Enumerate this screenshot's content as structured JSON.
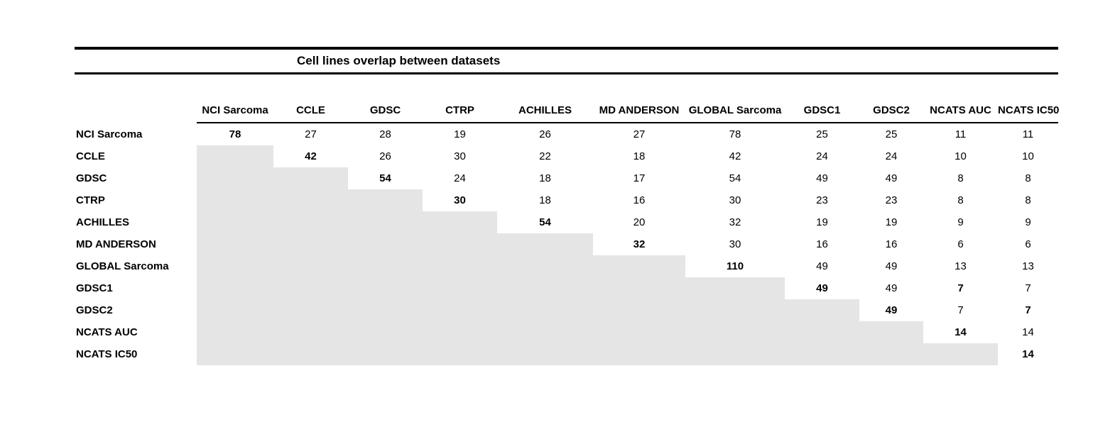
{
  "title": "Cell lines overlap between datasets",
  "colors": {
    "shaded_cell": "#e5e5e5",
    "rule": "#000000"
  },
  "columns": [
    "NCI Sarcoma",
    "CCLE",
    "GDSC",
    "CTRP",
    "ACHILLES",
    "MD ANDERSON",
    "GLOBAL Sarcoma",
    "GDSC1",
    "GDSC2",
    "NCATS AUC",
    "NCATS IC50"
  ],
  "rows": [
    {
      "label": "NCI Sarcoma",
      "cells": [
        {
          "v": 78,
          "b": true
        },
        {
          "v": 27
        },
        {
          "v": 28
        },
        {
          "v": 19
        },
        {
          "v": 26
        },
        {
          "v": 27
        },
        {
          "v": 78
        },
        {
          "v": 25
        },
        {
          "v": 25
        },
        {
          "v": 11
        },
        {
          "v": 11
        }
      ]
    },
    {
      "label": "CCLE",
      "cells": [
        null,
        {
          "v": 42,
          "b": true
        },
        {
          "v": 26
        },
        {
          "v": 30
        },
        {
          "v": 22
        },
        {
          "v": 18
        },
        {
          "v": 42
        },
        {
          "v": 24
        },
        {
          "v": 24
        },
        {
          "v": 10
        },
        {
          "v": 10
        }
      ]
    },
    {
      "label": "GDSC",
      "cells": [
        null,
        null,
        {
          "v": 54,
          "b": true
        },
        {
          "v": 24
        },
        {
          "v": 18
        },
        {
          "v": 17
        },
        {
          "v": 54
        },
        {
          "v": 49
        },
        {
          "v": 49
        },
        {
          "v": 8
        },
        {
          "v": 8
        }
      ]
    },
    {
      "label": "CTRP",
      "cells": [
        null,
        null,
        null,
        {
          "v": 30,
          "b": true
        },
        {
          "v": 18
        },
        {
          "v": 16
        },
        {
          "v": 30
        },
        {
          "v": 23
        },
        {
          "v": 23
        },
        {
          "v": 8
        },
        {
          "v": 8
        }
      ]
    },
    {
      "label": "ACHILLES",
      "cells": [
        null,
        null,
        null,
        null,
        {
          "v": 54,
          "b": true
        },
        {
          "v": 20
        },
        {
          "v": 32
        },
        {
          "v": 19
        },
        {
          "v": 19
        },
        {
          "v": 9
        },
        {
          "v": 9
        }
      ]
    },
    {
      "label": "MD ANDERSON",
      "cells": [
        null,
        null,
        null,
        null,
        null,
        {
          "v": 32,
          "b": true
        },
        {
          "v": 30
        },
        {
          "v": 16
        },
        {
          "v": 16
        },
        {
          "v": 6
        },
        {
          "v": 6
        }
      ]
    },
    {
      "label": "GLOBAL Sarcoma",
      "cells": [
        null,
        null,
        null,
        null,
        null,
        null,
        {
          "v": 110,
          "b": true
        },
        {
          "v": 49
        },
        {
          "v": 49
        },
        {
          "v": 13
        },
        {
          "v": 13
        }
      ]
    },
    {
      "label": "GDSC1",
      "cells": [
        null,
        null,
        null,
        null,
        null,
        null,
        null,
        {
          "v": 49,
          "b": true
        },
        {
          "v": 49
        },
        {
          "v": 7,
          "b": true
        },
        {
          "v": 7
        }
      ]
    },
    {
      "label": "GDSC2",
      "cells": [
        null,
        null,
        null,
        null,
        null,
        null,
        null,
        null,
        {
          "v": 49,
          "b": true
        },
        {
          "v": 7
        },
        {
          "v": 7,
          "b": true
        }
      ]
    },
    {
      "label": "NCATS AUC",
      "cells": [
        null,
        null,
        null,
        null,
        null,
        null,
        null,
        null,
        null,
        {
          "v": 14,
          "b": true
        },
        {
          "v": 14
        }
      ]
    },
    {
      "label": "NCATS IC50",
      "cells": [
        null,
        null,
        null,
        null,
        null,
        null,
        null,
        null,
        null,
        null,
        {
          "v": 14,
          "b": true
        }
      ]
    }
  ]
}
